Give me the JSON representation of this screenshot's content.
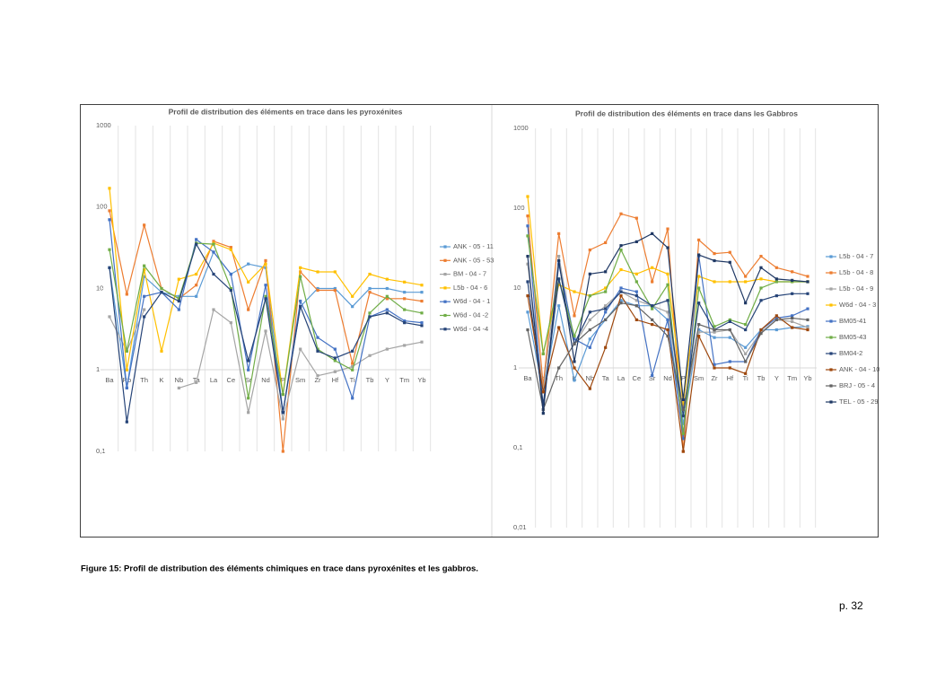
{
  "chart_data": [
    {
      "type": "line",
      "title": "Profil de distribution des éléments en trace dans les pyroxénites",
      "log_scale": true,
      "grid": true,
      "categories": [
        "Ba",
        "Rb",
        "Th",
        "K",
        "Nb",
        "Ta",
        "La",
        "Ce",
        "Sr",
        "Nd",
        "P",
        "Sm",
        "Zr",
        "Hf",
        "Ti",
        "Tb",
        "Y",
        "Tm",
        "Yb"
      ],
      "ylim": [
        0.1,
        1000
      ],
      "yticks": [
        {
          "value": 0.1,
          "label": "0,1"
        },
        1,
        10,
        100,
        1000
      ],
      "series": [
        {
          "name": "ANK - 05 - 11",
          "color": "#5b9bd5",
          "values": [
            18,
            0.6,
            14,
            9,
            8,
            8,
            28,
            15,
            20,
            18,
            0.3,
            6,
            10,
            10,
            6,
            10,
            10,
            9,
            9
          ]
        },
        {
          "name": "ANK - 05 - 53",
          "color": "#ed7d31",
          "values": [
            90,
            8.5,
            60,
            10,
            7.5,
            11,
            38,
            32,
            5.5,
            22,
            0.1,
            16,
            9.5,
            9.5,
            1.2,
            9,
            7.5,
            7.5,
            7
          ]
        },
        {
          "name": "BM - 04 - 7",
          "color": "#a5a5a5",
          "values": [
            4.5,
            1.7,
            5.5,
            null,
            0.6,
            0.7,
            5.5,
            3.8,
            0.3,
            3,
            0.25,
            1.8,
            0.85,
            0.95,
            1.1,
            1.5,
            1.8,
            2,
            2.2
          ]
        },
        {
          "name": "L5b - 04 - 6",
          "color": "#ffc000",
          "values": [
            170,
            1,
            17,
            1.7,
            13,
            15,
            36,
            30,
            12,
            20,
            0.5,
            18,
            16,
            16,
            8,
            15,
            13,
            12,
            11
          ]
        },
        {
          "name": "W6d - 04 - 1",
          "color": "#4472c4",
          "values": [
            70,
            0.6,
            8,
            9,
            5.5,
            40,
            28,
            15,
            1,
            11,
            0.3,
            7,
            2.5,
            1.8,
            0.45,
            4.5,
            5.5,
            4,
            3.8
          ]
        },
        {
          "name": "W6d - 04 -2",
          "color": "#70ad47",
          "values": [
            30,
            1.7,
            19,
            10,
            7.5,
            36,
            35,
            10,
            0.45,
            8,
            0.5,
            14,
            1.8,
            1.3,
            1,
            5,
            8,
            5.5,
            5
          ]
        },
        {
          "name": "W6d - 04 -4",
          "color": "#264478",
          "values": [
            18,
            0.23,
            4.5,
            9,
            7,
            35,
            15,
            9.5,
            1.3,
            7.5,
            0.3,
            6,
            1.7,
            1.4,
            1.7,
            4.5,
            5,
            3.8,
            3.5
          ]
        }
      ]
    },
    {
      "type": "line",
      "title": "Profil de distribution des éléments en trace dans les Gabbros",
      "log_scale": true,
      "grid": true,
      "categories": [
        "Ba",
        "Rb",
        "Th",
        "K",
        "Nb",
        "Ta",
        "La",
        "Ce",
        "Sr",
        "Nd",
        "P",
        "Sm",
        "Zr",
        "Hf",
        "Ti",
        "Tb",
        "Y",
        "Tm",
        "Yb"
      ],
      "ylim": [
        0.01,
        1000
      ],
      "yticks": [
        {
          "value": 0.01,
          "label": "0,01"
        },
        {
          "value": 0.1,
          "label": "0,1"
        },
        1,
        10,
        100,
        1000
      ],
      "series": [
        {
          "name": "L5b - 04 - 7",
          "color": "#5b9bd5",
          "values": [
            5,
            0.5,
            6,
            0.7,
            2.3,
            4,
            7,
            6,
            6,
            4,
            0.2,
            3,
            2.4,
            2.4,
            1.8,
            3,
            3,
            3.2,
            3.3
          ]
        },
        {
          "name": "L5b - 04 - 8",
          "color": "#ed7d31",
          "values": [
            80,
            0.6,
            48,
            4.5,
            30,
            37,
            85,
            75,
            12,
            55,
            0.09,
            40,
            27,
            28,
            14,
            25,
            18,
            16,
            14
          ]
        },
        {
          "name": "L5b - 04 - 9",
          "color": "#a5a5a5",
          "values": [
            20,
            0.5,
            25,
            2,
            4,
            6,
            9,
            7,
            6,
            5,
            0.3,
            2.8,
            2.8,
            3,
            1.5,
            2.8,
            4,
            3.8,
            3.2
          ]
        },
        {
          "name": "W6d - 04 - 3",
          "color": "#ffc000",
          "values": [
            140,
            1.5,
            11,
            9,
            8,
            10,
            17,
            15,
            18,
            15,
            0.35,
            14,
            12,
            12,
            12,
            13,
            12,
            12,
            12
          ]
        },
        {
          "name": "BM05-41",
          "color": "#4472c4",
          "values": [
            60,
            0.3,
            20,
            2.3,
            1.8,
            5,
            10,
            9,
            0.8,
            4,
            0.13,
            25,
            1.1,
            1.2,
            1.2,
            3,
            4.2,
            4.5,
            5.5
          ]
        },
        {
          "name": "BM05-43",
          "color": "#70ad47",
          "values": [
            45,
            1.5,
            13,
            2.5,
            8,
            9,
            30,
            12,
            5.5,
            11,
            0.15,
            10,
            3.3,
            4,
            3.5,
            10,
            12,
            12,
            12
          ]
        },
        {
          "name": "BM04-2",
          "color": "#264478",
          "values": [
            12,
            0.35,
            13,
            2,
            5,
            5.5,
            9,
            8,
            6,
            7,
            0.25,
            6.5,
            3,
            3.8,
            3,
            7,
            8,
            8.5,
            8.5
          ]
        },
        {
          "name": "ANK - 04 - 10",
          "color": "#9e480e",
          "values": [
            8,
            0.5,
            3.2,
            1,
            0.55,
            1.8,
            8,
            4,
            3.5,
            3,
            0.09,
            2.5,
            1,
            1,
            0.85,
            3,
            4.5,
            3.2,
            3
          ]
        },
        {
          "name": "BRJ - 05 - 4",
          "color": "#636363",
          "values": [
            3,
            0.3,
            1,
            2,
            3,
            4,
            6.5,
            6,
            4,
            2.5,
            0.3,
            3.5,
            3,
            3,
            1.2,
            2.7,
            4,
            4.2,
            4
          ]
        },
        {
          "name": "TEL - 05 - 29",
          "color": "#1f3864",
          "values": [
            25,
            0.27,
            22,
            1.2,
            15,
            16,
            34,
            38,
            48,
            32,
            0.4,
            26,
            22,
            21,
            6.5,
            18,
            13,
            12.5,
            12
          ]
        }
      ]
    }
  ],
  "caption": "Figure 15: Profil de distribution des éléments chimiques en trace dans pyroxénites et les gabbros.",
  "page_number": "p. 32"
}
